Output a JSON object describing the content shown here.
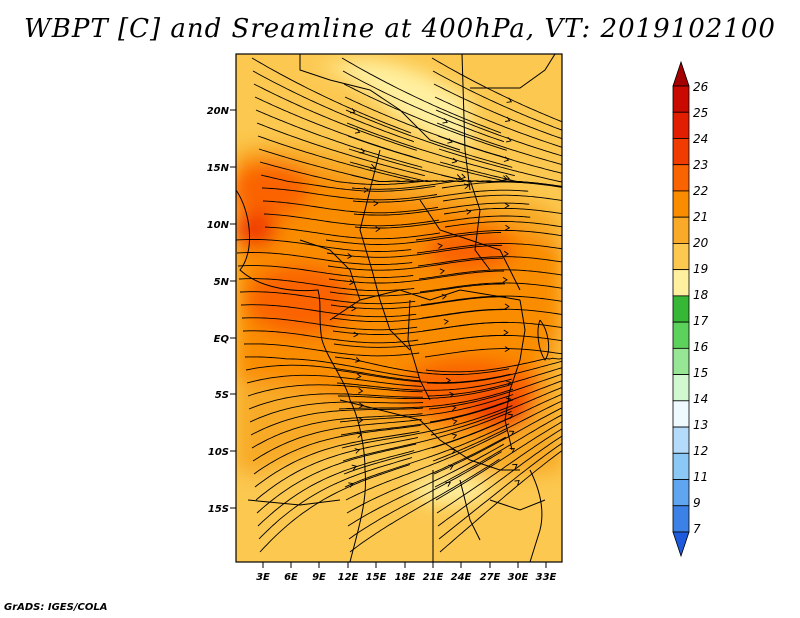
{
  "title": "WBPT [C] and Sreamline at 400hPa, VT: 2019102100",
  "credit": "GrADS: IGES/COLA",
  "map": {
    "lat_labels": [
      "20N",
      "15N",
      "10N",
      "5N",
      "EQ",
      "5S",
      "10S",
      "15S"
    ],
    "lon_labels": [
      "3E",
      "6E",
      "9E",
      "12E",
      "15E",
      "18E",
      "21E",
      "24E",
      "27E",
      "30E",
      "33E"
    ]
  },
  "colorbar": {
    "labels": [
      "26",
      "25",
      "24",
      "23",
      "22",
      "21",
      "20",
      "19",
      "18",
      "17",
      "16",
      "15",
      "14",
      "13",
      "12",
      "11",
      "9",
      "7"
    ],
    "colors": [
      "#a50000",
      "#c80a00",
      "#e11e00",
      "#f03c00",
      "#fa6400",
      "#fa8c00",
      "#f8aa28",
      "#fcc850",
      "#fff0a0",
      "#36b836",
      "#5cd25c",
      "#96e696",
      "#d2f8d2",
      "#eefaff",
      "#b4dcfa",
      "#8cc8f5",
      "#5fa5f0",
      "#3c82e6",
      "#1e5adc"
    ]
  }
}
